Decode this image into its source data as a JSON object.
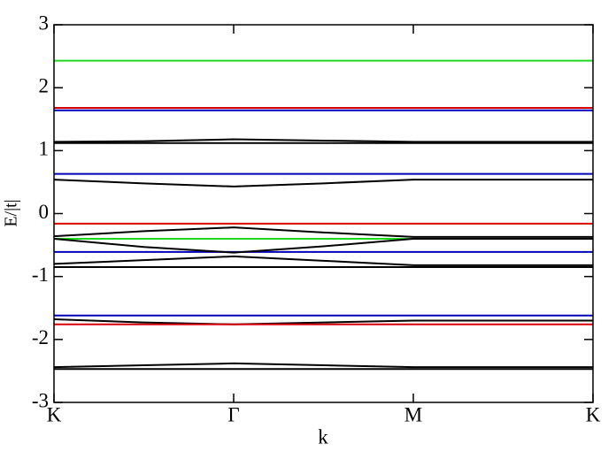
{
  "chart_data": {
    "type": "line",
    "xlabel": "k",
    "ylabel": "E/|t|",
    "x": [
      0,
      0.5,
      1,
      1.5,
      2,
      2.5,
      3
    ],
    "xlim": [
      0,
      3
    ],
    "xticks": [
      {
        "value": 0,
        "label": "K"
      },
      {
        "value": 1,
        "label": "Γ"
      },
      {
        "value": 2,
        "label": "M"
      },
      {
        "value": 3,
        "label": "K"
      }
    ],
    "ylim": [
      -3,
      3
    ],
    "yticks": [
      -3,
      -2,
      -1,
      0,
      1,
      2,
      3
    ],
    "series": [
      {
        "color": "#1ed81e",
        "values": [
          2.43,
          2.43,
          2.43,
          2.43,
          2.43,
          2.43,
          2.43
        ]
      },
      {
        "color": "#d80000",
        "values": [
          1.68,
          1.68,
          1.68,
          1.68,
          1.68,
          1.68,
          1.68
        ]
      },
      {
        "color": "#0000b8",
        "values": [
          1.64,
          1.64,
          1.64,
          1.64,
          1.64,
          1.64,
          1.64
        ]
      },
      {
        "color": "#000000",
        "values": [
          1.14,
          1.15,
          1.18,
          1.16,
          1.14,
          1.14,
          1.14
        ]
      },
      {
        "color": "#000000",
        "values": [
          1.12,
          1.12,
          1.12,
          1.12,
          1.12,
          1.12,
          1.12
        ]
      },
      {
        "color": "#0000b8",
        "values": [
          0.63,
          0.63,
          0.63,
          0.63,
          0.63,
          0.63,
          0.63
        ]
      },
      {
        "color": "#000000",
        "values": [
          0.54,
          0.48,
          0.43,
          0.48,
          0.54,
          0.54,
          0.54
        ]
      },
      {
        "color": "#d80000",
        "values": [
          -0.16,
          -0.16,
          -0.16,
          -0.16,
          -0.16,
          -0.16,
          -0.16
        ]
      },
      {
        "color": "#1ed81e",
        "values": [
          -0.4,
          -0.4,
          -0.4,
          -0.4,
          -0.4,
          -0.4,
          -0.4
        ]
      },
      {
        "color": "#0000b8",
        "values": [
          -0.61,
          -0.61,
          -0.61,
          -0.61,
          -0.61,
          -0.61,
          -0.61
        ]
      },
      {
        "color": "#000000",
        "values": [
          -0.36,
          -0.28,
          -0.22,
          -0.3,
          -0.37,
          -0.37,
          -0.37
        ]
      },
      {
        "color": "#000000",
        "values": [
          -0.4,
          -0.53,
          -0.62,
          -0.52,
          -0.4,
          -0.4,
          -0.4
        ]
      },
      {
        "color": "#000000",
        "values": [
          -0.8,
          -0.74,
          -0.68,
          -0.75,
          -0.82,
          -0.82,
          -0.82
        ]
      },
      {
        "color": "#000000",
        "values": [
          -0.85,
          -0.85,
          -0.85,
          -0.85,
          -0.85,
          -0.85,
          -0.85
        ]
      },
      {
        "color": "#0000b8",
        "values": [
          -1.62,
          -1.62,
          -1.62,
          -1.62,
          -1.62,
          -1.62,
          -1.62
        ]
      },
      {
        "color": "#000000",
        "values": [
          -1.68,
          -1.73,
          -1.76,
          -1.73,
          -1.7,
          -1.7,
          -1.7
        ]
      },
      {
        "color": "#d80000",
        "values": [
          -1.76,
          -1.76,
          -1.76,
          -1.76,
          -1.76,
          -1.76,
          -1.76
        ]
      },
      {
        "color": "#000000",
        "values": [
          -2.44,
          -2.41,
          -2.38,
          -2.41,
          -2.44,
          -2.44,
          -2.44
        ]
      },
      {
        "color": "#000000",
        "values": [
          -2.47,
          -2.47,
          -2.47,
          -2.47,
          -2.47,
          -2.47,
          -2.47
        ]
      }
    ]
  }
}
